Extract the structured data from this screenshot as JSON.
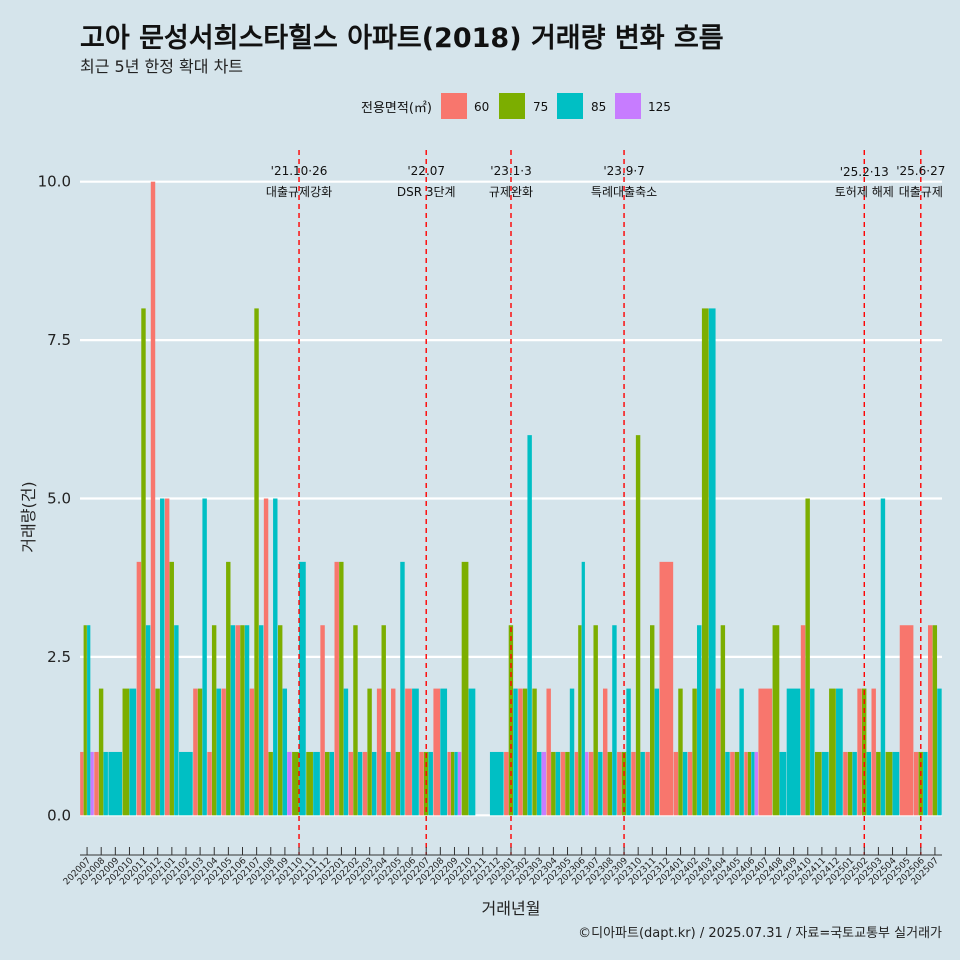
{
  "title": "고아 문성서희스타힐스 아파트(2018) 거래량 변화 흐름",
  "subtitle": "최근 5년 한정 확대 차트",
  "caption": "©디아파트(dapt.kr) / 2025.07.31 / 자료=국토교통부 실거래가",
  "colors": {
    "background": "#d5e4eb",
    "grid": "#ffffff",
    "event_line": "#ff0000"
  },
  "legend": {
    "title": "전용면적(㎡)",
    "items": [
      {
        "label": "60",
        "color": "#F8766D"
      },
      {
        "label": "75",
        "color": "#7CAE00"
      },
      {
        "label": "85",
        "color": "#00BFC4"
      },
      {
        "label": "125",
        "color": "#C77CFF"
      }
    ]
  },
  "events": [
    {
      "month": "202110",
      "date": "'21.10·26",
      "label": "대출규제강화"
    },
    {
      "month": "202207",
      "date": "'22.07",
      "label": "DSR 3단계"
    },
    {
      "month": "202301",
      "date": "'23.1·3",
      "label": "규제완화"
    },
    {
      "month": "202309",
      "date": "'23.9·7",
      "label": "특례대출축소"
    },
    {
      "month": "202502",
      "date": "'25.2·13",
      "label": "토허제 해제"
    },
    {
      "month": "202506",
      "date": "'25.6·27",
      "label": "대출규제"
    }
  ],
  "chart_data": {
    "type": "bar",
    "title": "고아 문성서희스타힐스 아파트(2018) 거래량 변화 흐름",
    "xlabel": "거래년월",
    "ylabel": "거래량(건)",
    "ylim": [
      -0.5,
      10.5
    ],
    "yticks": [
      0.0,
      2.5,
      5.0,
      7.5,
      10.0
    ],
    "ytick_labels": [
      "0.0",
      "2.5",
      "5.0",
      "7.5",
      "10.0"
    ],
    "categories": [
      "202007",
      "202008",
      "202009",
      "202010",
      "202011",
      "202012",
      "202101",
      "202102",
      "202103",
      "202104",
      "202105",
      "202106",
      "202107",
      "202108",
      "202109",
      "202110",
      "202111",
      "202112",
      "202201",
      "202202",
      "202203",
      "202204",
      "202205",
      "202206",
      "202207",
      "202208",
      "202209",
      "202210",
      "202211",
      "202212",
      "202301",
      "202302",
      "202303",
      "202304",
      "202305",
      "202306",
      "202307",
      "202308",
      "202309",
      "202310",
      "202311",
      "202312",
      "202401",
      "202402",
      "202403",
      "202404",
      "202405",
      "202406",
      "202407",
      "202408",
      "202409",
      "202410",
      "202411",
      "202412",
      "202501",
      "202502",
      "202503",
      "202504",
      "202505",
      "202506",
      "202507"
    ],
    "series": [
      {
        "name": "60",
        "values": [
          1,
          1,
          0,
          0,
          4,
          10,
          5,
          0,
          2,
          1,
          2,
          3,
          2,
          5,
          0,
          0,
          0,
          3,
          4,
          1,
          1,
          2,
          2,
          2,
          1,
          2,
          1,
          0,
          0,
          0,
          1,
          2,
          0,
          2,
          1,
          1,
          1,
          2,
          1,
          1,
          1,
          4,
          1,
          1,
          0,
          2,
          1,
          1,
          2,
          0,
          0,
          3,
          0,
          0,
          1,
          2,
          2,
          0,
          3,
          1,
          3
        ]
      },
      {
        "name": "75",
        "values": [
          3,
          2,
          0,
          2,
          8,
          2,
          4,
          0,
          2,
          3,
          4,
          3,
          8,
          1,
          3,
          1,
          1,
          1,
          4,
          3,
          2,
          3,
          1,
          0,
          1,
          0,
          1,
          4,
          0,
          0,
          3,
          2,
          2,
          1,
          1,
          3,
          3,
          1,
          1,
          6,
          3,
          0,
          2,
          2,
          8,
          3,
          1,
          1,
          0,
          3,
          0,
          5,
          1,
          2,
          1,
          2,
          1,
          1,
          0,
          1,
          3
        ]
      },
      {
        "name": "85",
        "values": [
          3,
          1,
          1,
          2,
          3,
          5,
          3,
          1,
          5,
          2,
          3,
          3,
          3,
          5,
          2,
          4,
          1,
          1,
          2,
          1,
          1,
          1,
          4,
          2,
          1,
          2,
          1,
          2,
          0,
          1,
          2,
          6,
          1,
          1,
          2,
          4,
          1,
          3,
          2,
          1,
          2,
          0,
          1,
          3,
          8,
          1,
          2,
          1,
          0,
          1,
          2,
          2,
          1,
          2,
          1,
          1,
          5,
          1,
          0,
          1,
          2
        ]
      },
      {
        "name": "125",
        "values": [
          1,
          0,
          0,
          0,
          0,
          0,
          0,
          0,
          0,
          0,
          0,
          0,
          0,
          0,
          1,
          0,
          0,
          0,
          0,
          0,
          0,
          0,
          0,
          0,
          0,
          0,
          1,
          0,
          0,
          0,
          0,
          0,
          1,
          0,
          0,
          1,
          0,
          0,
          0,
          0,
          0,
          0,
          0,
          0,
          0,
          0,
          0,
          1,
          0,
          0,
          0,
          0,
          0,
          0,
          0,
          0,
          0,
          0,
          0,
          0,
          0
        ]
      }
    ]
  }
}
